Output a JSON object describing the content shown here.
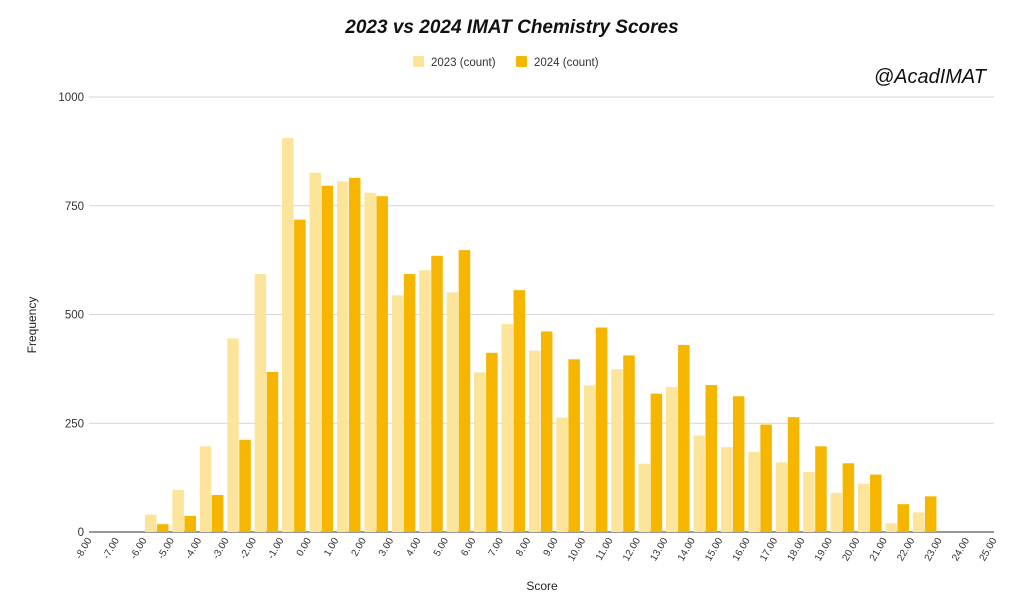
{
  "chart_data": {
    "type": "bar",
    "title": "2023 vs 2024 IMAT Chemistry Scores",
    "xlabel": "Score",
    "ylabel": "Frequency",
    "ylim": [
      0,
      1000
    ],
    "yticks": [
      "0",
      "250",
      "500",
      "750",
      "1000"
    ],
    "ytick_values": [
      0,
      250,
      500,
      750,
      1000
    ],
    "grid": true,
    "legend_position": "top-center",
    "watermark": "@AcadIMAT",
    "categories": [
      "-8.00",
      "-7.00",
      "-6.00",
      "-5.00",
      "-4.00",
      "-3.00",
      "-2.00",
      "-1.00",
      "0.00",
      "1.00",
      "2.00",
      "3.00",
      "4.00",
      "5.00",
      "6.00",
      "7.00",
      "8.00",
      "9.00",
      "10.00",
      "11.00",
      "12.00",
      "13.00",
      "14.00",
      "15.00",
      "16.00",
      "17.00",
      "18.00",
      "19.00",
      "20.00",
      "21.00",
      "22.00",
      "23.00",
      "24.00",
      "25.00"
    ],
    "series": [
      {
        "name": "2023 (count)",
        "color": "#fce49a",
        "values": [
          0,
          0,
          40,
          97,
          197,
          445,
          593,
          906,
          826,
          806,
          780,
          544,
          602,
          551,
          367,
          478,
          417,
          263,
          337,
          374,
          157,
          333,
          222,
          195,
          184,
          160,
          138,
          90,
          111,
          20,
          45,
          0,
          0,
          0
        ]
      },
      {
        "name": "2024 (count)",
        "color": "#f6b600",
        "values": [
          0,
          0,
          18,
          37,
          85,
          212,
          368,
          718,
          796,
          814,
          772,
          593,
          635,
          648,
          412,
          556,
          461,
          397,
          470,
          406,
          318,
          430,
          338,
          312,
          247,
          264,
          197,
          158,
          132,
          64,
          82,
          0,
          0,
          0
        ]
      }
    ]
  }
}
